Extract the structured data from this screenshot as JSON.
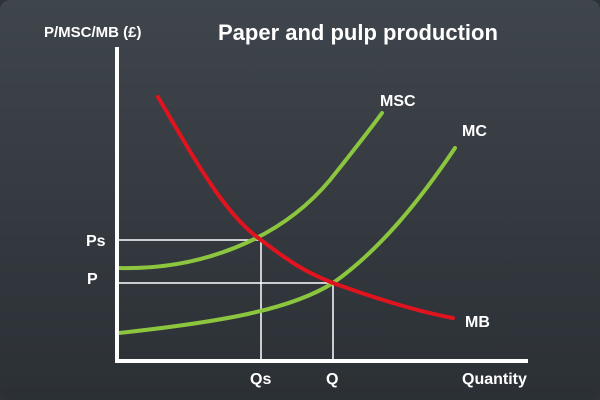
{
  "diagram": {
    "title": "Paper and pulp production",
    "y_axis_label": "P/MSC/MB (£)",
    "x_axis_label": "Quantity",
    "curves": [
      {
        "name": "MSC",
        "color": "#8cc63f"
      },
      {
        "name": "MC",
        "color": "#8cc63f"
      },
      {
        "name": "MB",
        "color": "#e0141e"
      }
    ],
    "price_ticks": [
      {
        "label": "Ps"
      },
      {
        "label": "P"
      }
    ],
    "quantity_ticks": [
      {
        "label": "Qs"
      },
      {
        "label": "Q"
      }
    ],
    "colors": {
      "background_top": "#3f454c",
      "background_bottom": "#2b3035",
      "axis": "#ffffff",
      "guide_lines": "#ffffff",
      "supply_curves": "#8cc63f",
      "demand_curve": "#e0141e"
    }
  }
}
